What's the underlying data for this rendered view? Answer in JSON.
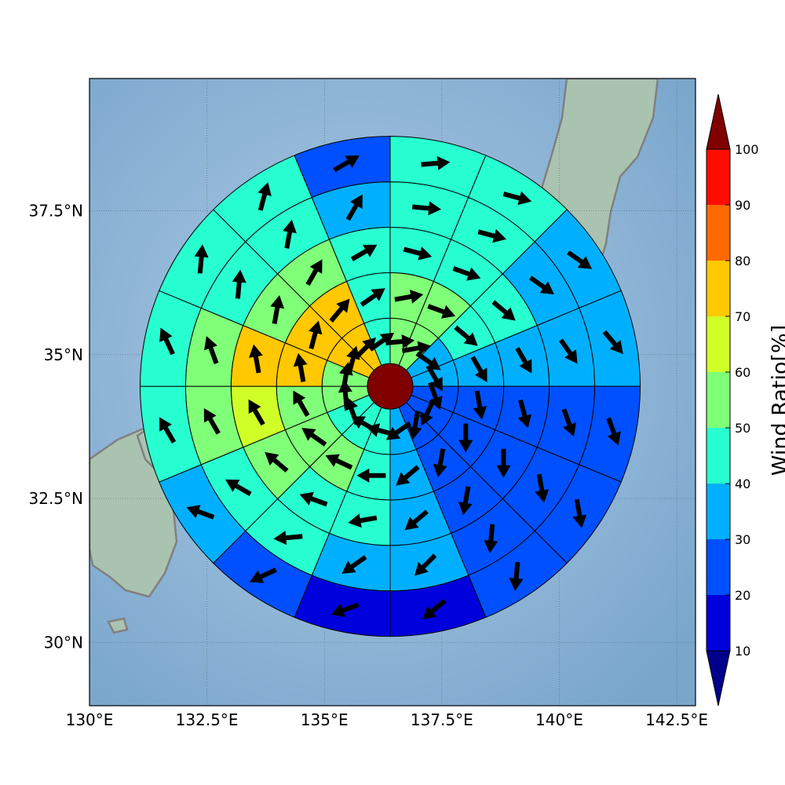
{
  "map": {
    "lon_ticks": [
      "130°E",
      "132.5°E",
      "135°E",
      "137.5°E",
      "140°E",
      "142.5°E"
    ],
    "lon_values": [
      130,
      132.5,
      135,
      137.5,
      140,
      142.5
    ],
    "lat_ticks": [
      "37.5°N",
      "35°N",
      "32.5°N",
      "30°N"
    ],
    "lat_values": [
      37.5,
      35,
      32.5,
      30
    ],
    "lon_range": [
      130,
      142.9
    ],
    "lat_range": [
      28.9,
      39.8
    ],
    "center": {
      "lon": 136.4,
      "lat": 34.45
    },
    "ring_step_deg": 0.79,
    "ring_count": 5,
    "sector_count": 16,
    "sea_color": "#8fb5d6",
    "land_color": "#a9c3b0",
    "coast_color": "#808080",
    "center_color": "#800000"
  },
  "colorbar": {
    "label": "Wind Ratio[%]",
    "tick_labels": [
      "10",
      "20",
      "30",
      "40",
      "50",
      "60",
      "70",
      "80",
      "90",
      "100"
    ],
    "tick_values": [
      10,
      20,
      30,
      40,
      50,
      60,
      70,
      80,
      90,
      100
    ],
    "bins": [
      {
        "min": 10,
        "max": 20,
        "color": "#0000dc"
      },
      {
        "min": 20,
        "max": 30,
        "color": "#0050ff"
      },
      {
        "min": 30,
        "max": 40,
        "color": "#00b0ff"
      },
      {
        "min": 40,
        "max": 50,
        "color": "#28ffd0"
      },
      {
        "min": 50,
        "max": 60,
        "color": "#80ff78"
      },
      {
        "min": 60,
        "max": 70,
        "color": "#d0ff28"
      },
      {
        "min": 70,
        "max": 80,
        "color": "#ffc800"
      },
      {
        "min": 80,
        "max": 90,
        "color": "#ff6a00"
      },
      {
        "min": 90,
        "max": 100,
        "color": "#ff0c00"
      }
    ],
    "under_color": "#00008c",
    "over_color": "#800000"
  },
  "rings": [
    {
      "ratios": [
        57,
        55,
        35,
        35,
        25,
        25,
        25,
        35,
        45,
        45,
        45,
        55,
        55,
        75,
        75,
        45
      ],
      "arrows": [
        85,
        80,
        125,
        150,
        160,
        205,
        190,
        235,
        285,
        300,
        340,
        355,
        10,
        15,
        45,
        55
      ]
    },
    {
      "ratios": [
        55,
        55,
        45,
        35,
        25,
        25,
        25,
        35,
        45,
        55,
        55,
        55,
        75,
        75,
        75,
        45
      ],
      "arrows": [
        80,
        110,
        130,
        150,
        170,
        180,
        190,
        230,
        270,
        295,
        305,
        330,
        350,
        15,
        40,
        55
      ]
    },
    {
      "ratios": [
        45,
        45,
        45,
        35,
        25,
        25,
        25,
        35,
        45,
        45,
        55,
        65,
        75,
        55,
        55,
        45
      ],
      "arrows": [
        105,
        110,
        130,
        150,
        165,
        180,
        190,
        230,
        260,
        290,
        310,
        330,
        350,
        10,
        30,
        60
      ]
    },
    {
      "ratios": [
        45,
        45,
        35,
        35,
        25,
        25,
        25,
        35,
        35,
        45,
        45,
        55,
        55,
        45,
        45,
        35
      ],
      "arrows": [
        95,
        105,
        125,
        145,
        160,
        170,
        185,
        225,
        235,
        265,
        300,
        330,
        340,
        5,
        10,
        30
      ]
    },
    {
      "ratios": [
        45,
        45,
        35,
        35,
        25,
        25,
        25,
        15,
        15,
        25,
        35,
        45,
        45,
        45,
        45,
        25
      ],
      "arrows": [
        85,
        105,
        125,
        140,
        160,
        170,
        185,
        230,
        250,
        245,
        290,
        330,
        335,
        5,
        15,
        60
      ]
    }
  ]
}
